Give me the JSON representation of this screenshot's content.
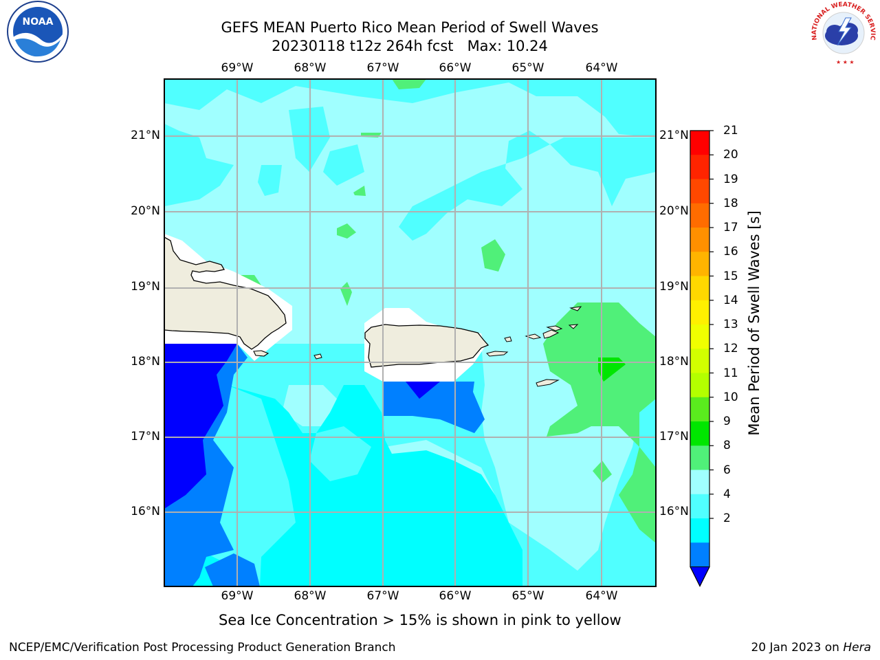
{
  "title": {
    "line1": "GEFS MEAN Puerto Rico Mean Period of Swell Waves",
    "line2": "20230118 t12z 264h fcst   Max: 10.24"
  },
  "map": {
    "lon_ticks": [
      "69°W",
      "68°W",
      "67°W",
      "66°W",
      "65°W",
      "64°W"
    ],
    "lat_ticks": [
      "21°N",
      "20°N",
      "19°N",
      "18°N",
      "17°N",
      "16°N"
    ],
    "land_color": "#efedde",
    "ocean_fill_colors": {
      "4-6": "#00ffff",
      "6-8": "#50ffff",
      "8-9": "#a0ffff",
      "9-10": "#50f079",
      "10-11": "#00e600",
      "2-4": "#0080ff",
      "<2": "#0000ff"
    }
  },
  "colorbar": {
    "label": "Mean Period of Swell Waves [s]",
    "ticks": [
      "21",
      "20",
      "19",
      "18",
      "17",
      "16",
      "15",
      "14",
      "13",
      "12",
      "11",
      "10",
      "9",
      "8",
      "6",
      "4",
      "2"
    ],
    "colors_top_to_bottom": [
      "#ff0000",
      "#ff2400",
      "#ff4800",
      "#ff6c00",
      "#ff9000",
      "#ffb400",
      "#ffd800",
      "#fff000",
      "#f0ff00",
      "#d2ff00",
      "#b4ff00",
      "#5aeb1e",
      "#00e600",
      "#50f079",
      "#a0ffff",
      "#50ffff",
      "#00ffff",
      "#0080ff"
    ],
    "extend_color": "#0000ff"
  },
  "footnote": "Sea Ice Concentration > 15% is shown in pink to yellow",
  "footer": {
    "left": "NCEP/EMC/Verification Post Processing Product Generation Branch",
    "right_date": "20 Jan 2023 on ",
    "right_host": "Hera"
  },
  "logos": {
    "noaa_text": "NOAA",
    "nws_text": "NATIONAL WEATHER SERVICE"
  }
}
